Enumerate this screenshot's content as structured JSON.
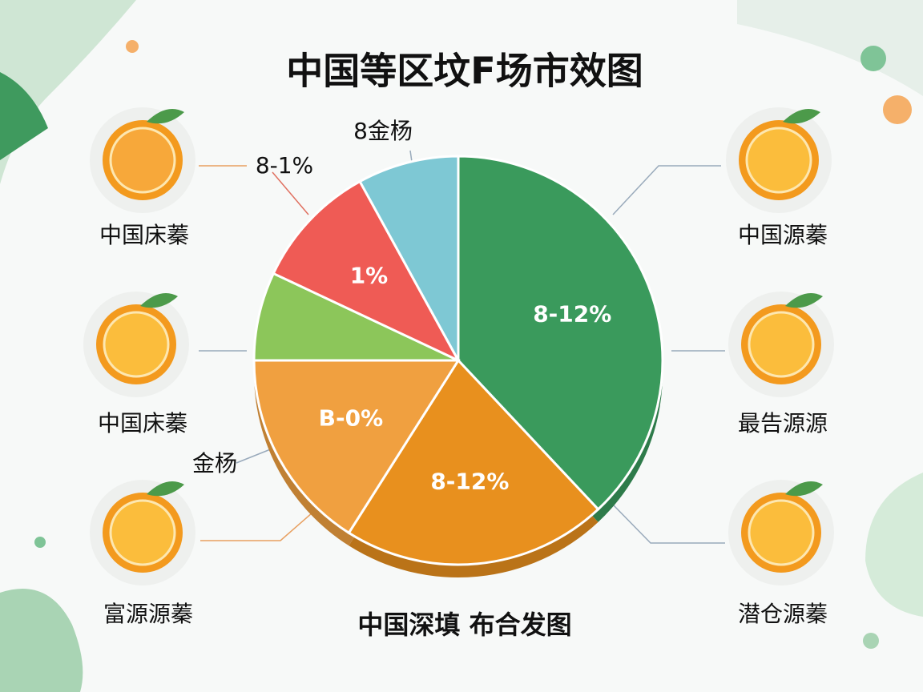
{
  "chart_data": {
    "type": "pie",
    "title": "中国等区坟F场市效图",
    "subtitle": "中国深填 布合发图",
    "values": [
      38,
      21,
      16,
      7,
      10,
      8
    ],
    "colors": [
      "#3a9a5c",
      "#e8901e",
      "#f0a040",
      "#8cc65a",
      "#ef5b55",
      "#7ec8d4"
    ],
    "slice_texts": [
      "8-12%",
      "8-12%",
      "B-0%",
      null,
      "1%",
      null
    ],
    "annotations": [
      "8-1%",
      "8金杨",
      "金杨"
    ]
  },
  "side_items": [
    "中国床蓁",
    "中国床蓁",
    "富源源蓁",
    "中国源蓁",
    "最告源源",
    "潜仓源蓁"
  ]
}
